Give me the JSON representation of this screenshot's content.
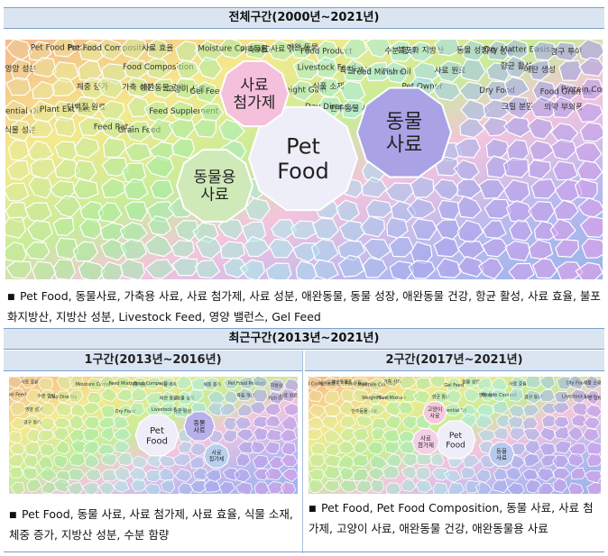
{
  "sections": {
    "overall_title": "전체구간(2000년~2021년)",
    "recent_title": "최근구간(2013년~2021년)",
    "period1_title": "1구간(2013년~2016년)",
    "period2_title": "2구간(2017년~2021년)"
  },
  "overall": {
    "big_labels": [
      "Pet Food",
      "동물 사료",
      "동물용 사료",
      "사료 첨가제"
    ],
    "medium_labels": [
      "Pet Food Product",
      "Pet Food Composition",
      "사료 효율",
      "Moisture Content",
      "가축 사료",
      "동물 사료 첨가제",
      "애완 동물",
      "Food Product",
      "수분 함량",
      "불포화 지방산",
      "동물 성장",
      "가축 생산",
      "Dry Matter Basis",
      "경구 투여",
      "영양 성분",
      "Food Composition",
      "Livestock Feed",
      "육질 개선",
      "Feed Mixture",
      "Fish Oil",
      "사료 원료",
      "향균 활성",
      "메탄 생성",
      "체중 증가",
      "가축 성장"
    ],
    "small_labels": [
      "애완동물 건강",
      "고양이 사료",
      "Gel Feed",
      "Weight Gain",
      "식품 소재",
      "Pet Owner",
      "Dry Food",
      "Food Granule",
      "Protein Content",
      "Essential Oil",
      "Plant Extract",
      "단백질 원료",
      "Feed Supplement",
      "Day Directly",
      "반추동물 사료",
      "크릴 분말",
      "의약 부외품",
      "식물 성분",
      "Feed Rate",
      "Grain Feed"
    ],
    "keywords": "Pet Food, 동물사료, 가축용 사료, 사료 첨가제, 사료 성분, 애완동물, 동물 성장, 애완동물 건강, 항균 활성, 사료 효율, 불포화지방산, 지방산 성분, Livestock Feed, 영양 밸런스, Gel Feed"
  },
  "period1": {
    "big_labels": [
      "Pet Food",
      "동물 사료",
      "사료 효율",
      "Moisture Content",
      "사료 첨가제"
    ],
    "small_labels": [
      "Feed Mixture",
      "가축 사료",
      "Food Composition",
      "식품 소재",
      "체중 증가",
      "Pet Food Product",
      "지방산",
      "Gel Feed",
      "수분 함량",
      "Day Directly",
      "애완 동물",
      "동물 성장",
      "육질 개선",
      "Fish Oil",
      "사료 원료",
      "영양 성분",
      "Dry Food",
      "Livestock Feed",
      "항균 활성",
      "경구 투여"
    ],
    "keywords": "Pet Food, 동물 사료, 사료 첨가제, 사료 효율, 식물 소재, 체중 증가, 지방산 성분, 수분 함량"
  },
  "period2": {
    "big_labels": [
      "Pet Food",
      "사료 첨가제",
      "고양이 사료",
      "Pet Food Composition",
      "동물 사료"
    ],
    "small_labels": [
      "애완동물 건강",
      "애완동물용 사료",
      "Food Product",
      "Moisture Content",
      "가축 사료",
      "Gel Feed",
      "동물 성장",
      "사료 효율",
      "Dry Food",
      "식품 소재",
      "Weight Gain",
      "Feed Mixture",
      "항균 활성",
      "영양 성분",
      "Protein Content",
      "경구 투여",
      "Livestock Feed",
      "수분 함량",
      "반추동물 사료",
      "Essential Oil"
    ],
    "keywords": "Pet Food, Pet Food Composition, 동물 사료, 사료 첨가제, 고양이 사료, 애완동물 건강, 애완동물용 사료"
  }
}
